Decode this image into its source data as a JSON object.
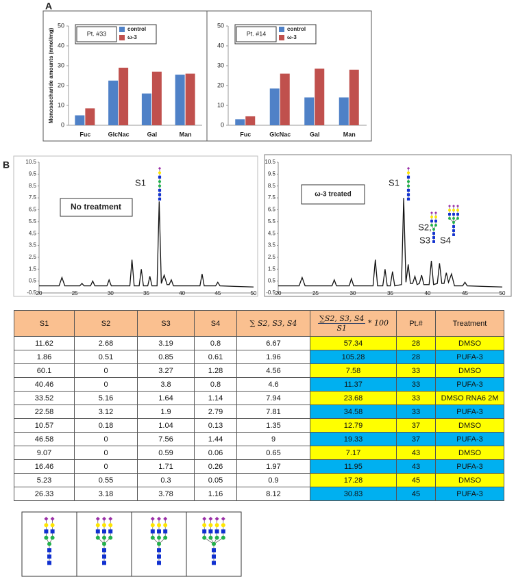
{
  "panel_labels": [
    "A",
    "B"
  ],
  "chart_data": [
    {
      "type": "bar",
      "ylabel": "Monosaccharide amounts (nmol/mg)",
      "annotation": "Pt. #33",
      "categories": [
        "Fuc",
        "GlcNac",
        "Gal",
        "Man"
      ],
      "series": [
        {
          "name": "control",
          "color": "#4f81c7",
          "values": [
            5,
            22.5,
            16,
            25.5
          ]
        },
        {
          "name": "ω-3",
          "color": "#c0504d",
          "values": [
            8.5,
            29,
            27,
            26
          ]
        }
      ],
      "ylim": [
        0,
        50
      ],
      "yticks": [
        0,
        10,
        20,
        30,
        40,
        50
      ]
    },
    {
      "type": "bar",
      "annotation": "Pt. #14",
      "categories": [
        "Fuc",
        "GlcNac",
        "Gal",
        "Man"
      ],
      "series": [
        {
          "name": "control",
          "color": "#4f81c7",
          "values": [
            3,
            18.5,
            14,
            14
          ]
        },
        {
          "name": "ω-3",
          "color": "#c0504d",
          "values": [
            4.5,
            26,
            28.5,
            28
          ]
        }
      ],
      "ylim": [
        0,
        50
      ],
      "yticks": [
        0,
        10,
        20,
        30,
        40,
        50
      ]
    },
    {
      "type": "line",
      "annotations": [
        "S1",
        "No treatment"
      ],
      "color": "#111",
      "x": [
        20,
        22.8,
        23.2,
        23.6,
        25.7,
        26,
        26.3,
        27.2,
        27.5,
        27.8,
        29.5,
        29.8,
        30.1,
        32.7,
        33,
        33.3,
        34,
        34.3,
        34.6,
        35.2,
        35.5,
        35.8,
        36.5,
        36.8,
        37.1,
        37.5,
        37.9,
        38.2,
        38.5,
        38.8,
        42.5,
        42.8,
        43.1,
        44.7,
        45,
        45.3,
        50
      ],
      "values": [
        0.1,
        0.1,
        0.8,
        0.1,
        0.1,
        0.3,
        0.1,
        0.1,
        0.5,
        0.1,
        0.1,
        0.6,
        0.1,
        0.1,
        2.3,
        0.1,
        0.1,
        1.5,
        0.1,
        0.1,
        0.9,
        0.1,
        0.1,
        7.2,
        0.3,
        1.0,
        0.2,
        0.2,
        0.6,
        0.1,
        0.1,
        1.1,
        0.1,
        0.1,
        0.4,
        0.1,
        0.0
      ],
      "xlim": [
        20,
        50
      ],
      "xticks": [
        20,
        25,
        30,
        35,
        40,
        45,
        50
      ],
      "ylim": [
        -0.5,
        10.5
      ],
      "yticks": [
        -0.5,
        0.5,
        1.5,
        2.5,
        3.5,
        4.5,
        5.5,
        6.5,
        7.5,
        8.5,
        9.5,
        10.5
      ]
    },
    {
      "type": "line",
      "annotations": [
        "S1",
        "ω-3 treated",
        "S2,",
        "S3",
        "S4"
      ],
      "color": "#111",
      "x": [
        20,
        22.8,
        23.2,
        23.6,
        27.2,
        27.5,
        27.8,
        29.5,
        29.8,
        30.1,
        32.7,
        33,
        33.3,
        34,
        34.3,
        34.6,
        35,
        35.3,
        35.6,
        36.5,
        36.8,
        37.1,
        37.4,
        37.7,
        38,
        38.3,
        38.6,
        38.9,
        39.2,
        39.5,
        40.2,
        40.5,
        40.8,
        41.3,
        41.6,
        41.9,
        42.2,
        42.5,
        42.8,
        43.2,
        43.6,
        44.7,
        45,
        45.3,
        50
      ],
      "values": [
        0.1,
        0.1,
        0.8,
        0.1,
        0.1,
        0.6,
        0.1,
        0.1,
        0.7,
        0.1,
        0.1,
        2.3,
        0.1,
        0.1,
        1.5,
        0.1,
        0.1,
        1.3,
        0.1,
        0.2,
        7.5,
        0.4,
        1.9,
        0.3,
        0.3,
        0.9,
        0.2,
        0.3,
        1.0,
        0.2,
        0.2,
        2.2,
        0.2,
        0.3,
        2.0,
        0.3,
        0.3,
        1.2,
        0.4,
        1.1,
        0.1,
        0.1,
        0.4,
        0.1,
        0.0
      ],
      "xlim": [
        20,
        50
      ],
      "xticks": [
        20,
        25,
        30,
        35,
        40,
        45,
        50
      ],
      "ylim": [
        -0.5,
        10.5
      ],
      "yticks": [
        -0.5,
        0.5,
        1.5,
        2.5,
        3.5,
        4.5,
        5.5,
        6.5,
        7.5,
        8.5,
        9.5,
        10.5
      ]
    }
  ],
  "table": {
    "header_color": "#fac090",
    "header": [
      "S1",
      "S2",
      "S3",
      "S4",
      "∑ S2, S3, S4",
      {
        "numerator": "∑S2, S3, S4",
        "denominator": "S1",
        "suffix": "* 100"
      },
      "Pt.#",
      "Treatment"
    ],
    "rows": [
      [
        11.62,
        2.68,
        3.19,
        0.8,
        6.67,
        57.34,
        28,
        "DMSO"
      ],
      [
        1.86,
        0.51,
        0.85,
        0.61,
        1.96,
        105.28,
        28,
        "PUFA-3"
      ],
      [
        60.1,
        0,
        3.27,
        1.28,
        4.56,
        7.58,
        33,
        "DMSO"
      ],
      [
        40.46,
        0,
        3.8,
        0.8,
        4.6,
        11.37,
        33,
        "PUFA-3"
      ],
      [
        33.52,
        5.16,
        1.64,
        1.14,
        7.94,
        23.68,
        33,
        "DMSO RNA6 2M"
      ],
      [
        22.58,
        3.12,
        1.9,
        2.79,
        7.81,
        34.58,
        33,
        "PUFA-3"
      ],
      [
        10.57,
        0.18,
        1.04,
        0.13,
        1.35,
        12.79,
        37,
        "DMSO"
      ],
      [
        46.58,
        0,
        7.56,
        1.44,
        9,
        19.33,
        37,
        "PUFA-3"
      ],
      [
        9.07,
        0,
        0.59,
        0.06,
        0.65,
        7.17,
        43,
        "DMSO"
      ],
      [
        16.46,
        0,
        1.71,
        0.26,
        1.97,
        11.95,
        43,
        "PUFA-3"
      ],
      [
        5.23,
        0.55,
        0.3,
        0.05,
        0.9,
        17.28,
        45,
        "DMSO"
      ],
      [
        26.33,
        3.18,
        3.78,
        1.16,
        8.12,
        30.83,
        45,
        "PUFA-3"
      ]
    ],
    "row_colors": [
      "#ffff00",
      "#00b0f0",
      "#ffff00",
      "#00b0f0",
      "#ffff00",
      "#00b0f0",
      "#ffff00",
      "#00b0f0",
      "#ffff00",
      "#00b0f0",
      "#ffff00",
      "#00b0f0"
    ]
  }
}
